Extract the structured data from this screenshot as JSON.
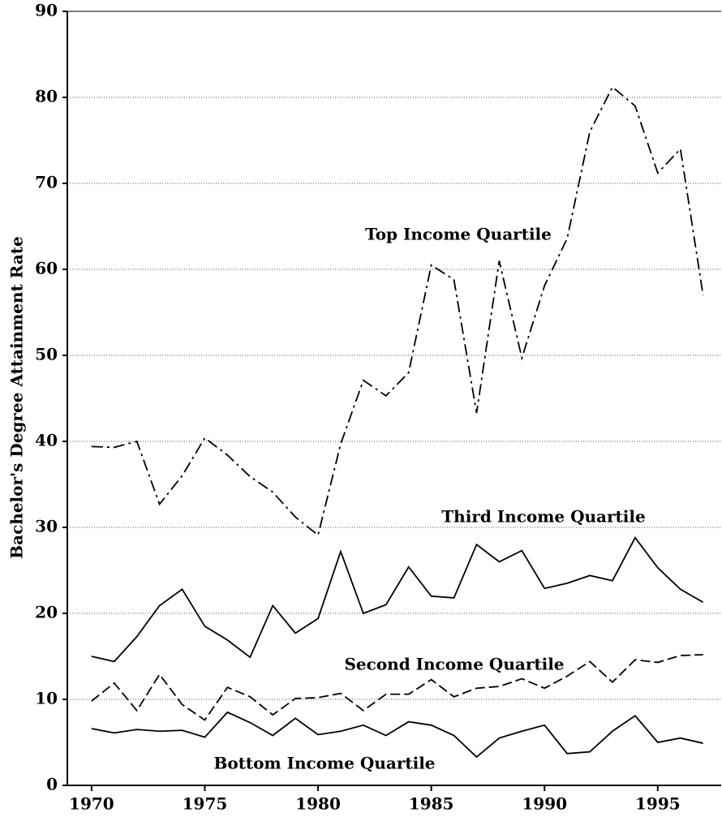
{
  "chart_data": {
    "type": "line",
    "y_label": "Bachelor's Degree Attainment Rate",
    "x": [
      1970,
      1971,
      1972,
      1973,
      1974,
      1975,
      1976,
      1977,
      1978,
      1979,
      1980,
      1981,
      1982,
      1983,
      1984,
      1985,
      1986,
      1987,
      1988,
      1989,
      1990,
      1991,
      1992,
      1993,
      1994,
      1995,
      1996,
      1997
    ],
    "series": [
      {
        "name": "Top Income Quartile",
        "color": "#000",
        "dash": "14,5,3,5",
        "values": [
          39.4,
          39.3,
          40.0,
          32.7,
          36.0,
          40.4,
          38.4,
          35.9,
          34.1,
          31.2,
          29.1,
          39.7,
          47.1,
          45.3,
          48.0,
          60.5,
          58.8,
          43.3,
          61.0,
          49.7,
          58.1,
          63.6,
          76.0,
          81.2,
          79.0,
          71.2,
          74.0,
          57.0
        ]
      },
      {
        "name": "Third Income Quartile",
        "color": "#000",
        "dash": "none",
        "values": [
          15.0,
          14.4,
          17.3,
          20.9,
          22.8,
          18.5,
          16.9,
          14.9,
          20.9,
          17.7,
          19.4,
          27.2,
          20.0,
          21.0,
          25.4,
          22.0,
          21.8,
          28.0,
          26.0,
          27.3,
          22.9,
          23.5,
          24.4,
          23.8,
          28.8,
          25.3,
          22.8,
          21.3
        ]
      },
      {
        "name": "Second Income Quartile",
        "color": "#000",
        "dash": "12,5",
        "values": [
          9.8,
          11.9,
          8.7,
          12.9,
          9.4,
          7.6,
          11.4,
          10.3,
          8.2,
          10.1,
          10.2,
          10.7,
          8.7,
          10.6,
          10.6,
          12.3,
          10.3,
          11.3,
          11.5,
          12.4,
          11.3,
          12.7,
          14.4,
          12.0,
          14.6,
          14.3,
          15.1,
          15.2
        ]
      },
      {
        "name": "Bottom Income Quartile",
        "color": "#000",
        "dash": "none",
        "values": [
          6.6,
          6.1,
          6.5,
          6.3,
          6.4,
          5.6,
          8.5,
          7.3,
          5.8,
          7.8,
          5.9,
          6.3,
          7.0,
          5.8,
          7.4,
          7.0,
          5.8,
          3.3,
          5.5,
          6.3,
          7.0,
          3.7,
          3.9,
          6.3,
          8.1,
          5.0,
          5.5,
          4.9
        ]
      }
    ],
    "xlim": [
      1968.93,
      1997.8
    ],
    "xticks": [
      1970,
      1975,
      1980,
      1985,
      1990,
      1995
    ],
    "ylim": [
      0,
      90
    ],
    "yticks": [
      0,
      10,
      20,
      30,
      40,
      50,
      60,
      70,
      80,
      90
    ],
    "grid": true
  }
}
